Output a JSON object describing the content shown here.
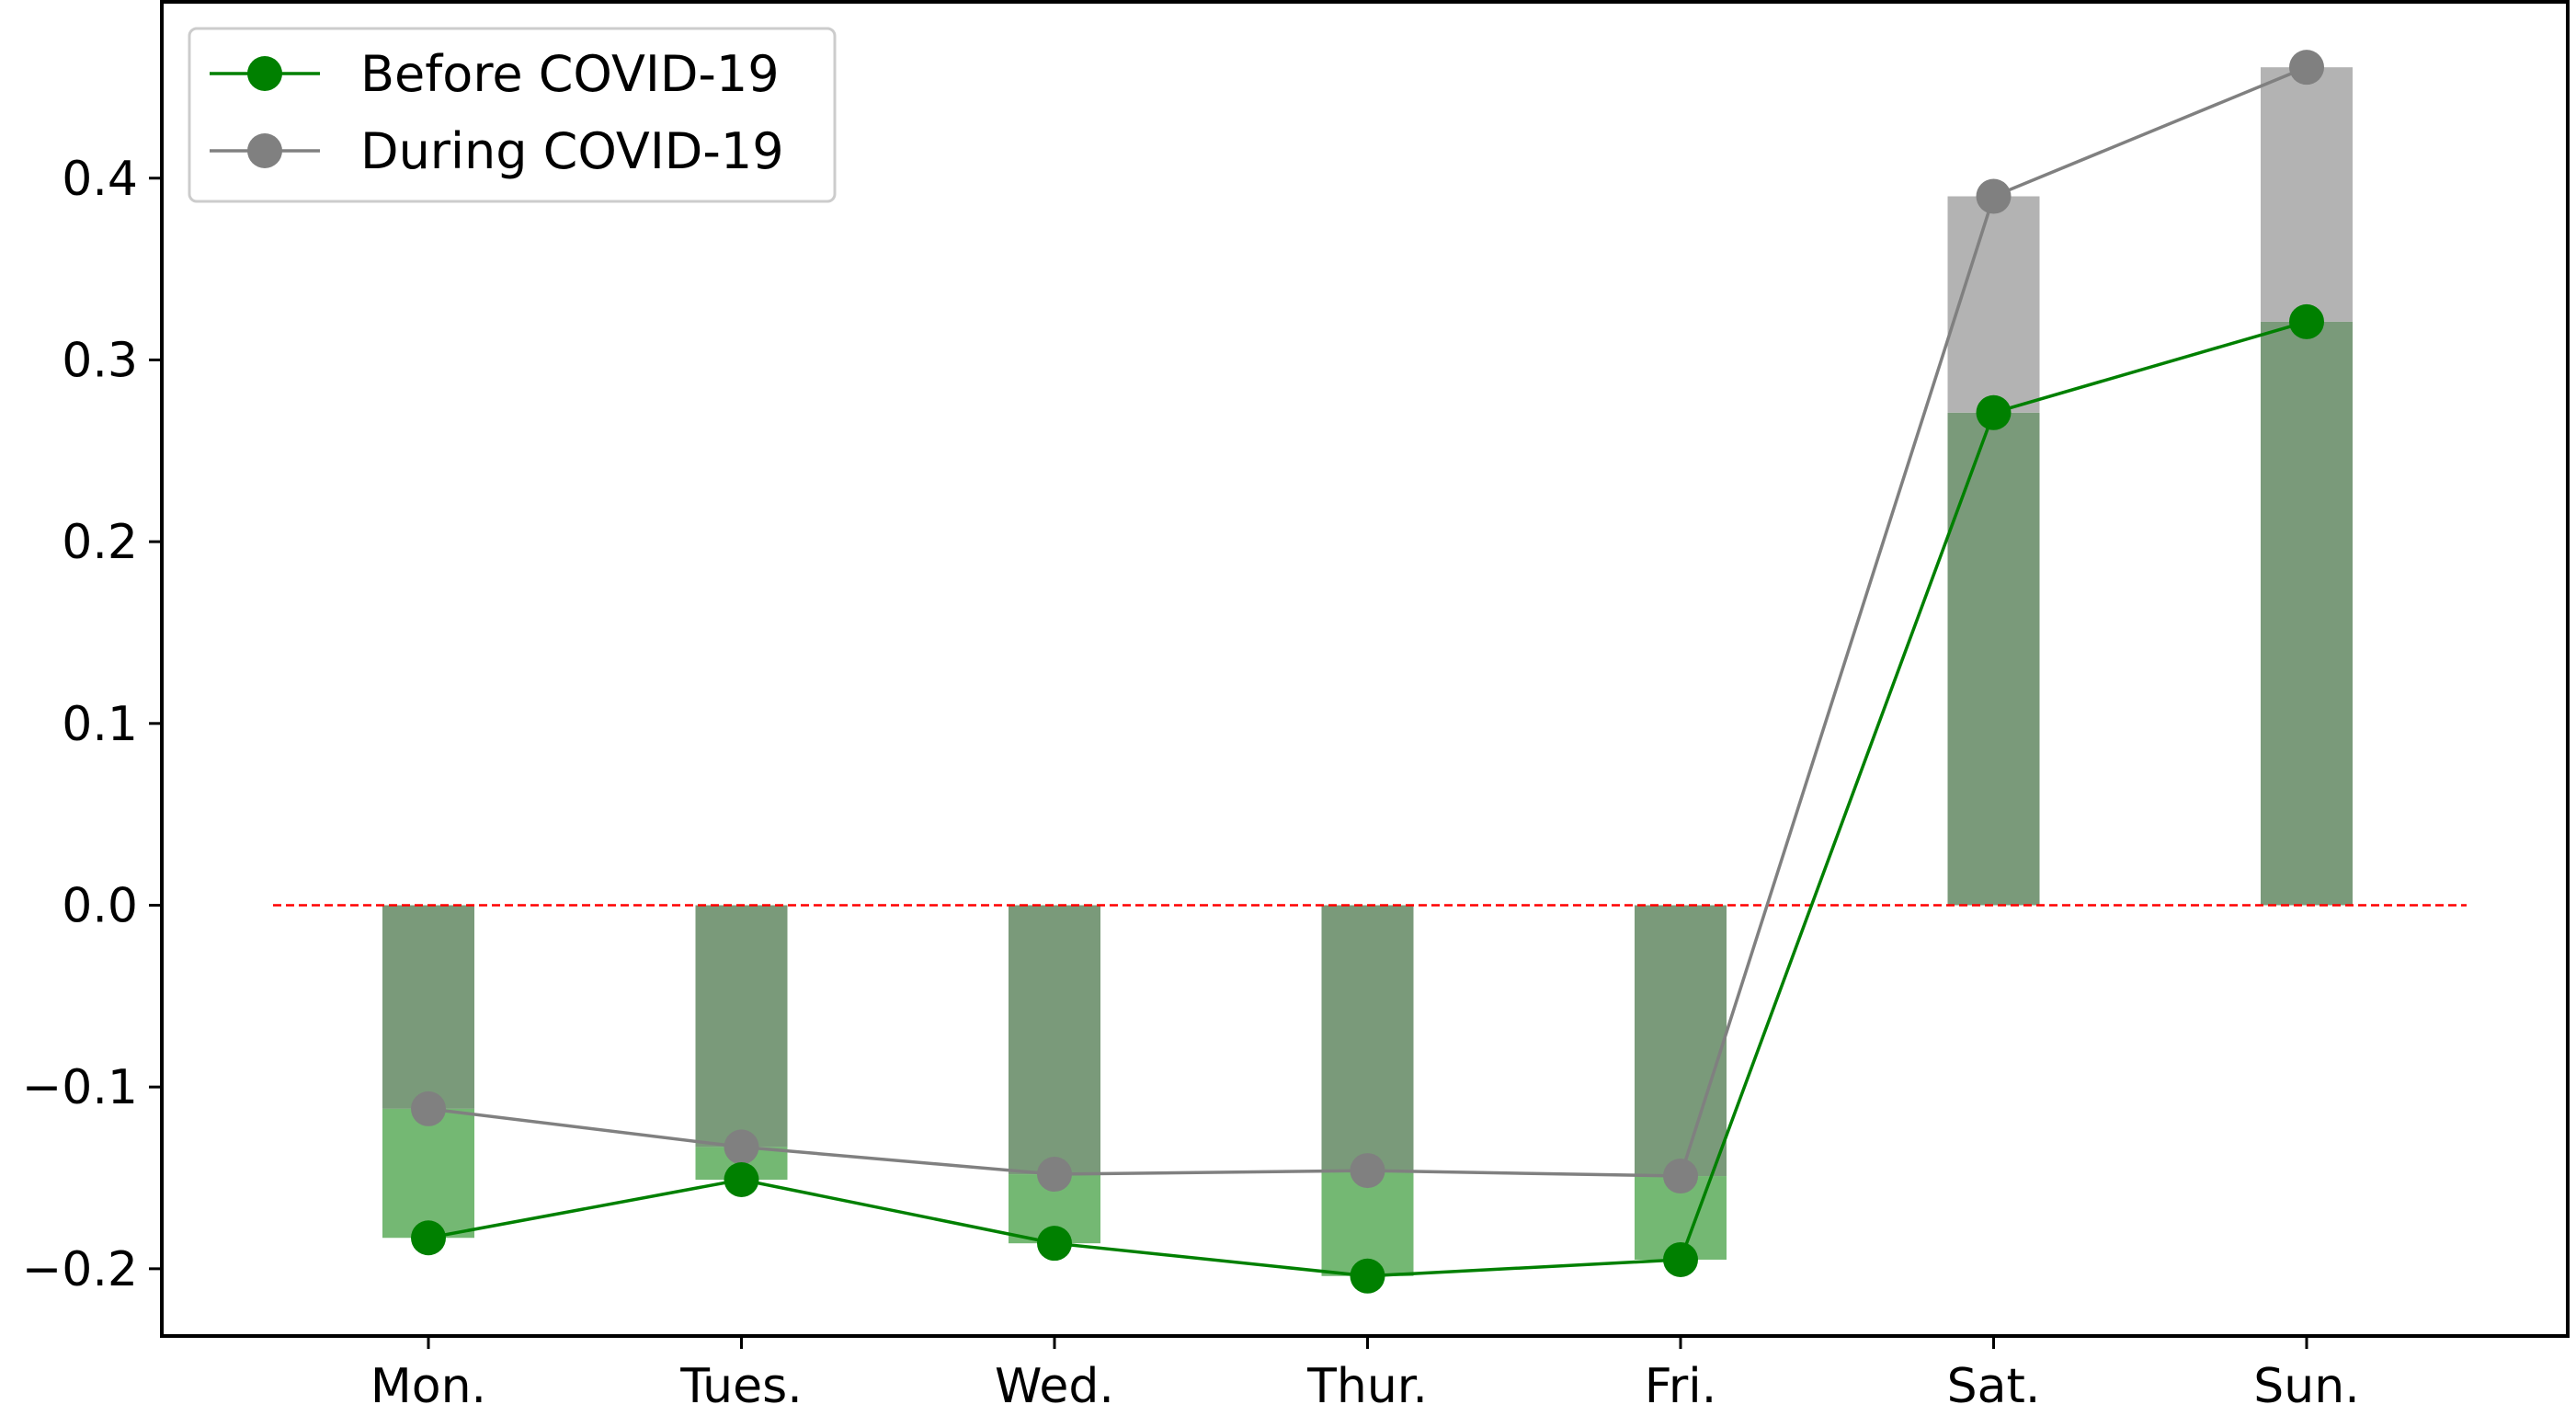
{
  "chart_data": {
    "type": "bar",
    "categories": [
      "Mon.",
      "Tues.",
      "Wed.",
      "Thur.",
      "Fri.",
      "Sat.",
      "Sun."
    ],
    "series": [
      {
        "name": "Before COVID-19",
        "values": [
          -0.183,
          -0.151,
          -0.186,
          -0.204,
          -0.195,
          0.271,
          0.321
        ],
        "color": "#008000",
        "bar_color": "#74b873",
        "style": "bar+line-with-markers"
      },
      {
        "name": "During COVID-19",
        "values": [
          -0.112,
          -0.133,
          -0.148,
          -0.146,
          -0.149,
          0.39,
          0.461
        ],
        "color": "#808080",
        "bar_color": "#b3b3b3",
        "style": "bar+line-with-markers"
      }
    ],
    "overlap_color": "#7a9a7a",
    "reference_line": {
      "y": 0.0,
      "color": "#ff0000",
      "style": "dashed"
    },
    "yticks": [
      "−0.2",
      "−0.1",
      "0.0",
      "0.1",
      "0.2",
      "0.3",
      "0.4"
    ],
    "ytick_values": [
      -0.2,
      -0.1,
      0.0,
      0.1,
      0.2,
      0.3,
      0.4
    ],
    "ylim": [
      -0.237,
      0.497
    ],
    "grid": false,
    "legend": "top-left",
    "title": "",
    "xlabel": "",
    "ylabel": ""
  }
}
